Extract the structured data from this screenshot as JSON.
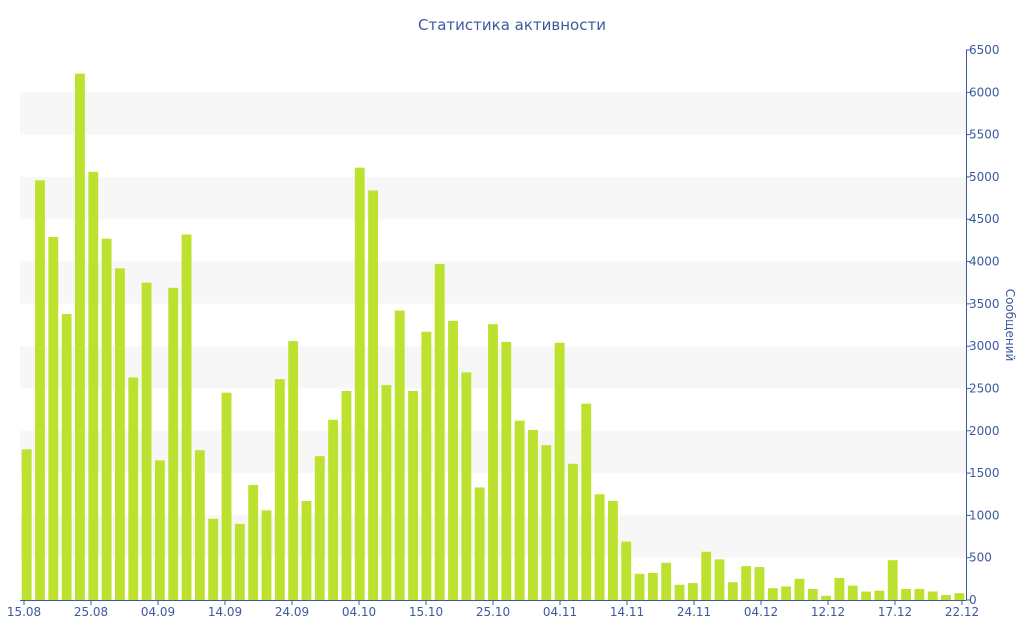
{
  "chart_data": {
    "type": "bar",
    "title": "Статистика активности",
    "ylabel": "Сообщений",
    "xlabel": "",
    "ylim": [
      0,
      6500
    ],
    "yticks": [
      0,
      500,
      1000,
      1500,
      2000,
      2500,
      3000,
      3500,
      4000,
      4500,
      5000,
      5500,
      6000,
      6500
    ],
    "y_axis_position": "right",
    "grid": "alternating horizontal bands",
    "bar_color": "#bce22f",
    "axis_color": "#3d5a9e",
    "band_color": "#f7f7f7",
    "x_tick_labels": [
      "15.08",
      "25.08",
      "04.09",
      "14.09",
      "24.09",
      "04.10",
      "15.10",
      "25.10",
      "04.11",
      "14.11",
      "24.11",
      "04.12",
      "12.12",
      "17.12",
      "22.12"
    ],
    "values": [
      1780,
      4960,
      4290,
      3380,
      6220,
      5060,
      4270,
      3920,
      2630,
      3750,
      1650,
      3690,
      4320,
      1770,
      960,
      2450,
      900,
      1360,
      1060,
      2610,
      3060,
      1170,
      1700,
      2130,
      2470,
      5110,
      4840,
      2540,
      3420,
      2470,
      3170,
      3970,
      3300,
      2690,
      1330,
      3260,
      3050,
      2120,
      2010,
      1830,
      3040,
      1610,
      2320,
      1250,
      1170,
      690,
      310,
      320,
      440,
      180,
      200,
      570,
      480,
      210,
      400,
      390,
      140,
      160,
      250,
      130,
      50,
      260,
      170,
      100,
      110,
      470,
      130,
      130,
      100,
      60,
      80
    ]
  }
}
